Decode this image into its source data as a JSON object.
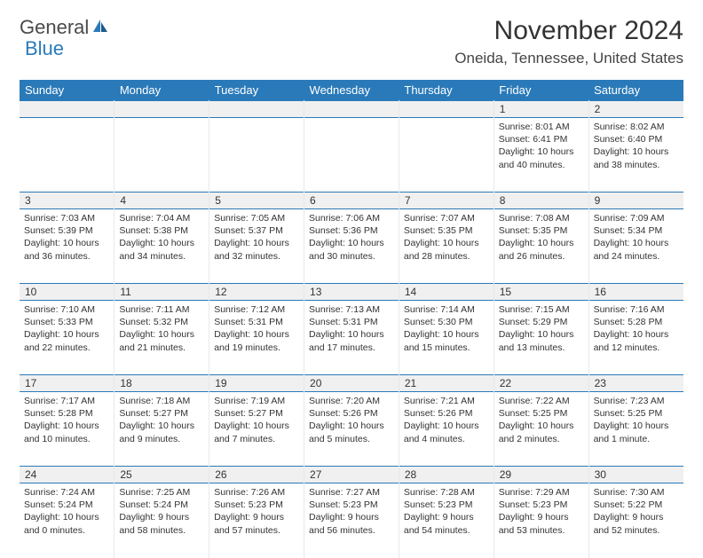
{
  "brand": {
    "name1": "General",
    "name2": "Blue",
    "iconColor": "#2a7ab9"
  },
  "title": "November 2024",
  "location": "Oneida, Tennessee, United States",
  "headers": [
    "Sunday",
    "Monday",
    "Tuesday",
    "Wednesday",
    "Thursday",
    "Friday",
    "Saturday"
  ],
  "colors": {
    "headerBg": "#2a7ab9",
    "headerText": "#ffffff",
    "dayNumBg": "#f0f0f0",
    "borderTop": "#2a7ab9",
    "borderCell": "#e8e8e8",
    "text": "#333333"
  },
  "weeks": [
    [
      {
        "day": "",
        "sunrise": "",
        "sunset": "",
        "daylight": ""
      },
      {
        "day": "",
        "sunrise": "",
        "sunset": "",
        "daylight": ""
      },
      {
        "day": "",
        "sunrise": "",
        "sunset": "",
        "daylight": ""
      },
      {
        "day": "",
        "sunrise": "",
        "sunset": "",
        "daylight": ""
      },
      {
        "day": "",
        "sunrise": "",
        "sunset": "",
        "daylight": ""
      },
      {
        "day": "1",
        "sunrise": "Sunrise: 8:01 AM",
        "sunset": "Sunset: 6:41 PM",
        "daylight": "Daylight: 10 hours and 40 minutes."
      },
      {
        "day": "2",
        "sunrise": "Sunrise: 8:02 AM",
        "sunset": "Sunset: 6:40 PM",
        "daylight": "Daylight: 10 hours and 38 minutes."
      }
    ],
    [
      {
        "day": "3",
        "sunrise": "Sunrise: 7:03 AM",
        "sunset": "Sunset: 5:39 PM",
        "daylight": "Daylight: 10 hours and 36 minutes."
      },
      {
        "day": "4",
        "sunrise": "Sunrise: 7:04 AM",
        "sunset": "Sunset: 5:38 PM",
        "daylight": "Daylight: 10 hours and 34 minutes."
      },
      {
        "day": "5",
        "sunrise": "Sunrise: 7:05 AM",
        "sunset": "Sunset: 5:37 PM",
        "daylight": "Daylight: 10 hours and 32 minutes."
      },
      {
        "day": "6",
        "sunrise": "Sunrise: 7:06 AM",
        "sunset": "Sunset: 5:36 PM",
        "daylight": "Daylight: 10 hours and 30 minutes."
      },
      {
        "day": "7",
        "sunrise": "Sunrise: 7:07 AM",
        "sunset": "Sunset: 5:35 PM",
        "daylight": "Daylight: 10 hours and 28 minutes."
      },
      {
        "day": "8",
        "sunrise": "Sunrise: 7:08 AM",
        "sunset": "Sunset: 5:35 PM",
        "daylight": "Daylight: 10 hours and 26 minutes."
      },
      {
        "day": "9",
        "sunrise": "Sunrise: 7:09 AM",
        "sunset": "Sunset: 5:34 PM",
        "daylight": "Daylight: 10 hours and 24 minutes."
      }
    ],
    [
      {
        "day": "10",
        "sunrise": "Sunrise: 7:10 AM",
        "sunset": "Sunset: 5:33 PM",
        "daylight": "Daylight: 10 hours and 22 minutes."
      },
      {
        "day": "11",
        "sunrise": "Sunrise: 7:11 AM",
        "sunset": "Sunset: 5:32 PM",
        "daylight": "Daylight: 10 hours and 21 minutes."
      },
      {
        "day": "12",
        "sunrise": "Sunrise: 7:12 AM",
        "sunset": "Sunset: 5:31 PM",
        "daylight": "Daylight: 10 hours and 19 minutes."
      },
      {
        "day": "13",
        "sunrise": "Sunrise: 7:13 AM",
        "sunset": "Sunset: 5:31 PM",
        "daylight": "Daylight: 10 hours and 17 minutes."
      },
      {
        "day": "14",
        "sunrise": "Sunrise: 7:14 AM",
        "sunset": "Sunset: 5:30 PM",
        "daylight": "Daylight: 10 hours and 15 minutes."
      },
      {
        "day": "15",
        "sunrise": "Sunrise: 7:15 AM",
        "sunset": "Sunset: 5:29 PM",
        "daylight": "Daylight: 10 hours and 13 minutes."
      },
      {
        "day": "16",
        "sunrise": "Sunrise: 7:16 AM",
        "sunset": "Sunset: 5:28 PM",
        "daylight": "Daylight: 10 hours and 12 minutes."
      }
    ],
    [
      {
        "day": "17",
        "sunrise": "Sunrise: 7:17 AM",
        "sunset": "Sunset: 5:28 PM",
        "daylight": "Daylight: 10 hours and 10 minutes."
      },
      {
        "day": "18",
        "sunrise": "Sunrise: 7:18 AM",
        "sunset": "Sunset: 5:27 PM",
        "daylight": "Daylight: 10 hours and 9 minutes."
      },
      {
        "day": "19",
        "sunrise": "Sunrise: 7:19 AM",
        "sunset": "Sunset: 5:27 PM",
        "daylight": "Daylight: 10 hours and 7 minutes."
      },
      {
        "day": "20",
        "sunrise": "Sunrise: 7:20 AM",
        "sunset": "Sunset: 5:26 PM",
        "daylight": "Daylight: 10 hours and 5 minutes."
      },
      {
        "day": "21",
        "sunrise": "Sunrise: 7:21 AM",
        "sunset": "Sunset: 5:26 PM",
        "daylight": "Daylight: 10 hours and 4 minutes."
      },
      {
        "day": "22",
        "sunrise": "Sunrise: 7:22 AM",
        "sunset": "Sunset: 5:25 PM",
        "daylight": "Daylight: 10 hours and 2 minutes."
      },
      {
        "day": "23",
        "sunrise": "Sunrise: 7:23 AM",
        "sunset": "Sunset: 5:25 PM",
        "daylight": "Daylight: 10 hours and 1 minute."
      }
    ],
    [
      {
        "day": "24",
        "sunrise": "Sunrise: 7:24 AM",
        "sunset": "Sunset: 5:24 PM",
        "daylight": "Daylight: 10 hours and 0 minutes."
      },
      {
        "day": "25",
        "sunrise": "Sunrise: 7:25 AM",
        "sunset": "Sunset: 5:24 PM",
        "daylight": "Daylight: 9 hours and 58 minutes."
      },
      {
        "day": "26",
        "sunrise": "Sunrise: 7:26 AM",
        "sunset": "Sunset: 5:23 PM",
        "daylight": "Daylight: 9 hours and 57 minutes."
      },
      {
        "day": "27",
        "sunrise": "Sunrise: 7:27 AM",
        "sunset": "Sunset: 5:23 PM",
        "daylight": "Daylight: 9 hours and 56 minutes."
      },
      {
        "day": "28",
        "sunrise": "Sunrise: 7:28 AM",
        "sunset": "Sunset: 5:23 PM",
        "daylight": "Daylight: 9 hours and 54 minutes."
      },
      {
        "day": "29",
        "sunrise": "Sunrise: 7:29 AM",
        "sunset": "Sunset: 5:23 PM",
        "daylight": "Daylight: 9 hours and 53 minutes."
      },
      {
        "day": "30",
        "sunrise": "Sunrise: 7:30 AM",
        "sunset": "Sunset: 5:22 PM",
        "daylight": "Daylight: 9 hours and 52 minutes."
      }
    ]
  ]
}
